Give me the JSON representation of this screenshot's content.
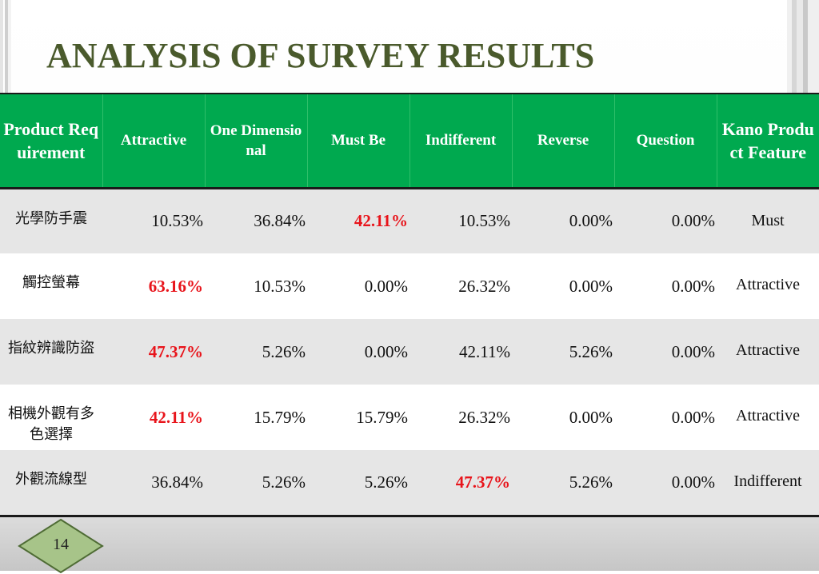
{
  "title": "ANALYSIS OF SURVEY RESULTS",
  "table": {
    "headers": [
      "Product Requirement",
      "Attractive",
      "One Dimensional",
      "Must Be",
      "Indifferent",
      "Reverse",
      "Question",
      "Kano Product Feature"
    ],
    "rows": [
      {
        "name": "光學防手震",
        "values": [
          "10.53%",
          "36.84%",
          "42.11%",
          "10.53%",
          "0.00%",
          "0.00%"
        ],
        "feature": "Must",
        "highlight": 2
      },
      {
        "name": "觸控螢幕",
        "values": [
          "63.16%",
          "10.53%",
          "0.00%",
          "26.32%",
          "0.00%",
          "0.00%"
        ],
        "feature": "Attractive",
        "highlight": 0
      },
      {
        "name": "指紋辨識防盜",
        "values": [
          "47.37%",
          "5.26%",
          "0.00%",
          "42.11%",
          "5.26%",
          "0.00%"
        ],
        "feature": "Attractive",
        "highlight": 0
      },
      {
        "name": "相機外觀有多色選擇",
        "values": [
          "42.11%",
          "15.79%",
          "15.79%",
          "26.32%",
          "0.00%",
          "0.00%"
        ],
        "feature": "Attractive",
        "highlight": 0
      },
      {
        "name": "外觀流線型",
        "values": [
          "36.84%",
          "5.26%",
          "5.26%",
          "47.37%",
          "5.26%",
          "0.00%"
        ],
        "feature": "Indifferent",
        "highlight": 3
      }
    ]
  },
  "page_number": "14",
  "colors": {
    "header_bg": "#00a94f",
    "title": "#4a5a2c",
    "highlight": "#e8141b",
    "row_shaded": "#e6e6e6"
  }
}
